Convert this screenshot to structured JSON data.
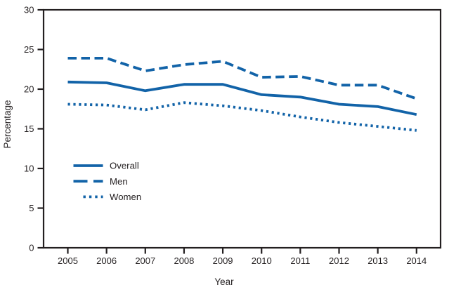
{
  "chart_data": {
    "type": "line",
    "title": "",
    "xlabel": "Year",
    "ylabel": "Percentage",
    "categories": [
      "2005",
      "2006",
      "2007",
      "2008",
      "2009",
      "2010",
      "2011",
      "2012",
      "2013",
      "2014"
    ],
    "ylim": [
      0,
      30
    ],
    "ytick_interval": 5,
    "ytick_labels": [
      "0",
      "5",
      "10",
      "15",
      "20",
      "25",
      "30"
    ],
    "grid": false,
    "legend_position": "inside-left-middle",
    "line_color": "#1263a8",
    "axis_color": "#231f20",
    "series": [
      {
        "name": "Overall",
        "line_style": "solid",
        "values": [
          20.9,
          20.8,
          19.8,
          20.6,
          20.6,
          19.3,
          19.0,
          18.1,
          17.8,
          16.8
        ]
      },
      {
        "name": "Men",
        "line_style": "dashed",
        "values": [
          23.9,
          23.9,
          22.3,
          23.1,
          23.5,
          21.5,
          21.6,
          20.5,
          20.5,
          18.8
        ]
      },
      {
        "name": "Women",
        "line_style": "dotted",
        "values": [
          18.1,
          18.0,
          17.4,
          18.3,
          17.9,
          17.3,
          16.5,
          15.8,
          15.3,
          14.8
        ]
      }
    ]
  }
}
